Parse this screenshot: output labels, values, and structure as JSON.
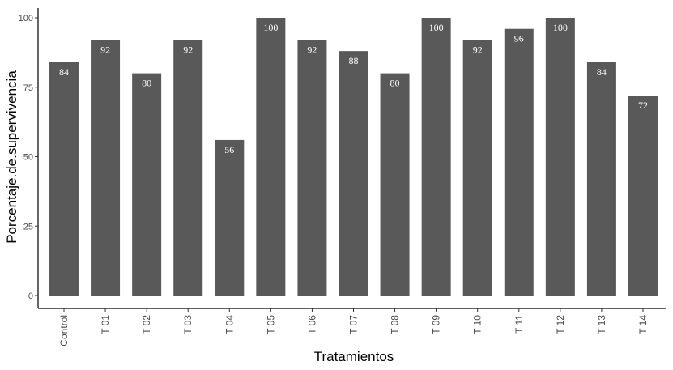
{
  "chart_data": {
    "type": "bar",
    "categories": [
      "Control",
      "T 01",
      "T 02",
      "T 03",
      "T 04",
      "T 05",
      "T 06",
      "T 07",
      "T 08",
      "T 09",
      "T 10",
      "T 11",
      "T 12",
      "T 13",
      "T 14"
    ],
    "values": [
      84,
      92,
      80,
      92,
      56,
      100,
      92,
      88,
      80,
      100,
      92,
      96,
      100,
      84,
      72
    ],
    "data_labels": [
      "84",
      "92",
      "80",
      "92",
      "56",
      "100",
      "92",
      "88",
      "80",
      "100",
      "92",
      "96",
      "100",
      "84",
      "72"
    ],
    "xlabel": "Tratamientos",
    "ylabel": "Porcentaje.de.supervivencia",
    "ylim": [
      0,
      100
    ],
    "yticks": [
      0,
      25,
      50,
      75,
      100
    ],
    "ytick_labels": [
      "0",
      "25",
      "50",
      "75",
      "100"
    ],
    "grid": false,
    "legend": "none",
    "bar_color": "#595959",
    "label_color": "#ffffff"
  }
}
